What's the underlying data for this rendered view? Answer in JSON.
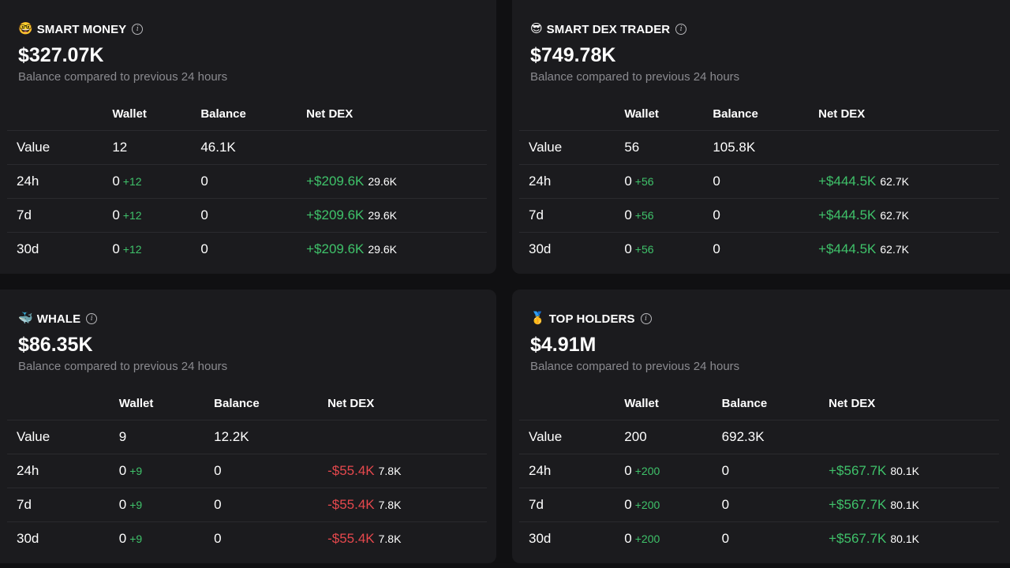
{
  "columns": [
    "",
    "Wallet",
    "Balance",
    "Net DEX"
  ],
  "row_labels": [
    "Value",
    "24h",
    "7d",
    "30d"
  ],
  "subtitle": "Balance compared to previous 24 hours",
  "colors": {
    "positive": "#3fc26a",
    "negative": "#e5484d",
    "card": "#1b1b1e",
    "background": "#101012"
  },
  "cards": [
    {
      "emoji": "🤓",
      "title": "SMART MONEY",
      "amount": "$327.07K",
      "value": {
        "wallet": "12",
        "balance": "46.1K"
      },
      "periods": [
        {
          "wallet": "0",
          "wallet_delta": "+12",
          "balance": "0",
          "net": "+$209.6K",
          "net_sub": "29.6K",
          "net_sign": "pos"
        },
        {
          "wallet": "0",
          "wallet_delta": "+12",
          "balance": "0",
          "net": "+$209.6K",
          "net_sub": "29.6K",
          "net_sign": "pos"
        },
        {
          "wallet": "0",
          "wallet_delta": "+12",
          "balance": "0",
          "net": "+$209.6K",
          "net_sub": "29.6K",
          "net_sign": "pos"
        }
      ]
    },
    {
      "emoji": "😎",
      "title": "SMART DEX TRADER",
      "amount": "$749.78K",
      "value": {
        "wallet": "56",
        "balance": "105.8K"
      },
      "periods": [
        {
          "wallet": "0",
          "wallet_delta": "+56",
          "balance": "0",
          "net": "+$444.5K",
          "net_sub": "62.7K",
          "net_sign": "pos"
        },
        {
          "wallet": "0",
          "wallet_delta": "+56",
          "balance": "0",
          "net": "+$444.5K",
          "net_sub": "62.7K",
          "net_sign": "pos"
        },
        {
          "wallet": "0",
          "wallet_delta": "+56",
          "balance": "0",
          "net": "+$444.5K",
          "net_sub": "62.7K",
          "net_sign": "pos"
        }
      ]
    },
    {
      "emoji": "🐳",
      "title": "WHALE",
      "amount": "$86.35K",
      "value": {
        "wallet": "9",
        "balance": "12.2K"
      },
      "periods": [
        {
          "wallet": "0",
          "wallet_delta": "+9",
          "balance": "0",
          "net": "-$55.4K",
          "net_sub": "7.8K",
          "net_sign": "neg"
        },
        {
          "wallet": "0",
          "wallet_delta": "+9",
          "balance": "0",
          "net": "-$55.4K",
          "net_sub": "7.8K",
          "net_sign": "neg"
        },
        {
          "wallet": "0",
          "wallet_delta": "+9",
          "balance": "0",
          "net": "-$55.4K",
          "net_sub": "7.8K",
          "net_sign": "neg"
        }
      ]
    },
    {
      "emoji": "🥇",
      "title": "TOP HOLDERS",
      "amount": "$4.91M",
      "value": {
        "wallet": "200",
        "balance": "692.3K"
      },
      "periods": [
        {
          "wallet": "0",
          "wallet_delta": "+200",
          "balance": "0",
          "net": "+$567.7K",
          "net_sub": "80.1K",
          "net_sign": "pos"
        },
        {
          "wallet": "0",
          "wallet_delta": "+200",
          "balance": "0",
          "net": "+$567.7K",
          "net_sub": "80.1K",
          "net_sign": "pos"
        },
        {
          "wallet": "0",
          "wallet_delta": "+200",
          "balance": "0",
          "net": "+$567.7K",
          "net_sub": "80.1K",
          "net_sign": "pos"
        }
      ]
    }
  ]
}
